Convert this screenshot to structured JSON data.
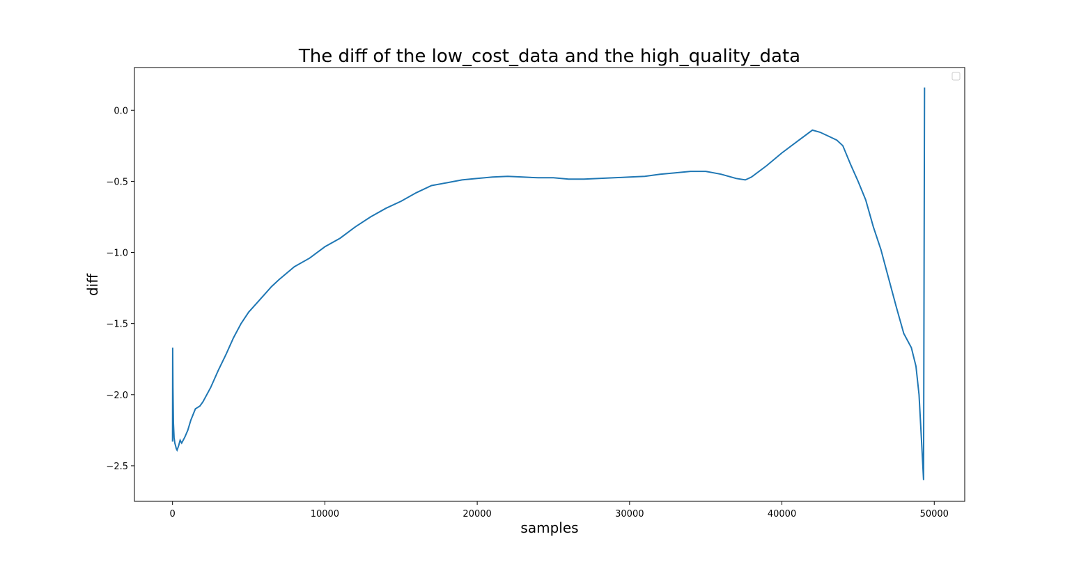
{
  "chart_data": {
    "type": "line",
    "title": "The diff of the low_cost_data and the high_quality_data",
    "xlabel": "samples",
    "ylabel": "diff",
    "xlim": [
      -2500,
      52000
    ],
    "ylim": [
      -2.75,
      0.3
    ],
    "xticks": [
      0,
      10000,
      20000,
      30000,
      40000,
      50000
    ],
    "xtick_labels": [
      "0",
      "10000",
      "20000",
      "30000",
      "40000",
      "50000"
    ],
    "yticks": [
      0.0,
      -0.5,
      -1.0,
      -1.5,
      -2.0,
      -2.5
    ],
    "ytick_labels": [
      "0.0",
      "−0.5",
      "−1.0",
      "−1.5",
      "−2.0",
      "−2.5"
    ],
    "grid": false,
    "legend": "top-right (empty)",
    "series": [
      {
        "color": "#1f77b4",
        "x": [
          0,
          10,
          30,
          60,
          100,
          150,
          200,
          250,
          300,
          400,
          500,
          600,
          800,
          1000,
          1200,
          1500,
          1800,
          2000,
          2500,
          3000,
          3500,
          4000,
          4500,
          5000,
          5500,
          6000,
          6500,
          7000,
          8000,
          9000,
          10000,
          11000,
          12000,
          13000,
          14000,
          15000,
          16000,
          17000,
          18000,
          19000,
          20000,
          21000,
          22000,
          23000,
          24000,
          25000,
          26000,
          27000,
          28000,
          29000,
          30000,
          31000,
          32000,
          33000,
          34000,
          35000,
          36000,
          37000,
          37600,
          38000,
          39000,
          40000,
          41000,
          42000,
          42500,
          43000,
          43600,
          44000,
          44500,
          45000,
          45500,
          46000,
          46500,
          47000,
          47500,
          48000,
          48500,
          48800,
          49000,
          49200,
          49300,
          49330,
          49360
        ],
        "y": [
          -2.33,
          -1.67,
          -1.95,
          -2.2,
          -2.3,
          -2.34,
          -2.36,
          -2.38,
          -2.39,
          -2.36,
          -2.32,
          -2.34,
          -2.3,
          -2.25,
          -2.18,
          -2.1,
          -2.08,
          -2.05,
          -1.95,
          -1.83,
          -1.72,
          -1.6,
          -1.5,
          -1.42,
          -1.36,
          -1.3,
          -1.24,
          -1.19,
          -1.1,
          -1.04,
          -0.96,
          -0.9,
          -0.82,
          -0.75,
          -0.69,
          -0.64,
          -0.58,
          -0.53,
          -0.51,
          -0.49,
          -0.48,
          -0.47,
          -0.465,
          -0.47,
          -0.475,
          -0.475,
          -0.485,
          -0.485,
          -0.48,
          -0.475,
          -0.47,
          -0.465,
          -0.45,
          -0.44,
          -0.43,
          -0.43,
          -0.45,
          -0.48,
          -0.49,
          -0.47,
          -0.39,
          -0.3,
          -0.22,
          -0.14,
          -0.155,
          -0.18,
          -0.21,
          -0.25,
          -0.38,
          -0.5,
          -0.63,
          -0.82,
          -0.98,
          -1.18,
          -1.38,
          -1.57,
          -1.67,
          -1.8,
          -2.0,
          -2.4,
          -2.6,
          -1.2,
          0.16
        ]
      }
    ]
  }
}
